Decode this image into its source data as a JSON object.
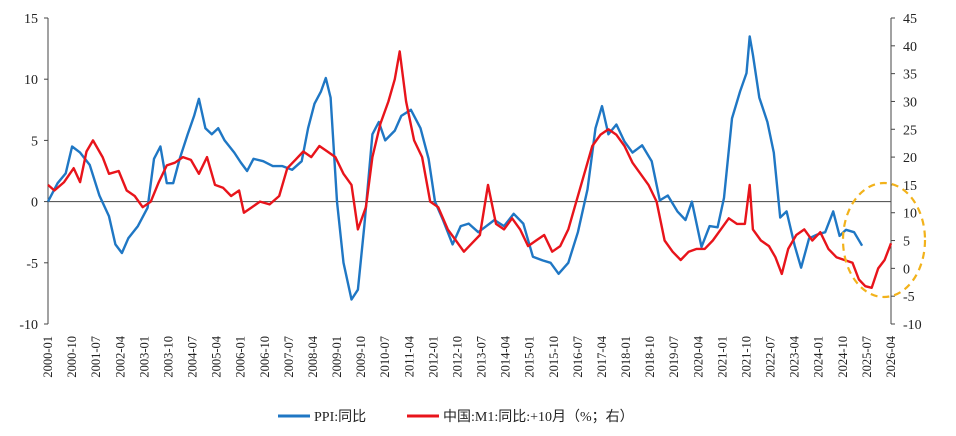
{
  "chart_data": {
    "type": "line",
    "title": "",
    "xlabel": "",
    "ylabel_left": "",
    "ylabel_right": "",
    "ylim_left": [
      -10,
      15
    ],
    "ylim_right": [
      -10,
      45
    ],
    "left_ticks": [
      "15",
      "10",
      "5",
      "0",
      "-5",
      "-10"
    ],
    "right_ticks": [
      "45",
      "40",
      "35",
      "30",
      "25",
      "20",
      "15",
      "10",
      "5",
      "0",
      "-5",
      "-10"
    ],
    "x_tick_labels": [
      "2000-01",
      "2000-10",
      "2001-07",
      "2002-04",
      "2003-01",
      "2003-10",
      "2004-07",
      "2005-04",
      "2006-01",
      "2006-10",
      "2007-07",
      "2008-04",
      "2009-01",
      "2009-10",
      "2010-07",
      "2011-04",
      "2012-01",
      "2012-10",
      "2013-07",
      "2014-04",
      "2015-01",
      "2015-10",
      "2016-07",
      "2017-04",
      "2018-01",
      "2018-10",
      "2019-07",
      "2020-04",
      "2021-01",
      "2021-10",
      "2022-07",
      "2023-04",
      "2024-01",
      "2024-10",
      "2025-07",
      "2026-04"
    ],
    "grid": false,
    "legend_position": "bottom",
    "series": [
      {
        "name": "PPI:同比",
        "axis": "left",
        "color": "#1f77c4",
        "points": [
          [
            2000.0,
            0.0
          ],
          [
            2000.3,
            1.5
          ],
          [
            2000.55,
            2.3
          ],
          [
            2000.75,
            4.5
          ],
          [
            2001.0,
            4.0
          ],
          [
            2001.3,
            3.0
          ],
          [
            2001.6,
            0.5
          ],
          [
            2001.9,
            -1.2
          ],
          [
            2002.1,
            -3.5
          ],
          [
            2002.3,
            -4.2
          ],
          [
            2002.5,
            -3.0
          ],
          [
            2002.8,
            -2.0
          ],
          [
            2003.1,
            -0.5
          ],
          [
            2003.3,
            3.5
          ],
          [
            2003.5,
            4.5
          ],
          [
            2003.7,
            1.5
          ],
          [
            2003.9,
            1.5
          ],
          [
            2004.1,
            3.5
          ],
          [
            2004.35,
            5.5
          ],
          [
            2004.55,
            7.0
          ],
          [
            2004.7,
            8.4
          ],
          [
            2004.9,
            6.0
          ],
          [
            2005.1,
            5.5
          ],
          [
            2005.3,
            6.0
          ],
          [
            2005.5,
            5.0
          ],
          [
            2005.8,
            4.0
          ],
          [
            2006.0,
            3.2
          ],
          [
            2006.2,
            2.5
          ],
          [
            2006.4,
            3.5
          ],
          [
            2006.7,
            3.3
          ],
          [
            2007.0,
            2.9
          ],
          [
            2007.3,
            2.9
          ],
          [
            2007.6,
            2.6
          ],
          [
            2007.9,
            3.3
          ],
          [
            2008.1,
            6.0
          ],
          [
            2008.3,
            8.0
          ],
          [
            2008.5,
            9.0
          ],
          [
            2008.65,
            10.1
          ],
          [
            2008.8,
            8.5
          ],
          [
            2009.0,
            0.0
          ],
          [
            2009.2,
            -5.0
          ],
          [
            2009.45,
            -8.0
          ],
          [
            2009.65,
            -7.2
          ],
          [
            2009.85,
            -2.0
          ],
          [
            2010.1,
            5.5
          ],
          [
            2010.3,
            6.5
          ],
          [
            2010.5,
            5.0
          ],
          [
            2010.8,
            5.8
          ],
          [
            2011.0,
            7.0
          ],
          [
            2011.3,
            7.5
          ],
          [
            2011.6,
            6.0
          ],
          [
            2011.85,
            3.5
          ],
          [
            2012.05,
            0.0
          ],
          [
            2012.3,
            -1.5
          ],
          [
            2012.6,
            -3.5
          ],
          [
            2012.85,
            -2.0
          ],
          [
            2013.1,
            -1.8
          ],
          [
            2013.4,
            -2.5
          ],
          [
            2013.65,
            -2.0
          ],
          [
            2013.9,
            -1.5
          ],
          [
            2014.2,
            -2.0
          ],
          [
            2014.5,
            -1.0
          ],
          [
            2014.8,
            -1.8
          ],
          [
            2015.1,
            -4.5
          ],
          [
            2015.4,
            -4.8
          ],
          [
            2015.65,
            -5.0
          ],
          [
            2015.9,
            -5.9
          ],
          [
            2016.2,
            -5.0
          ],
          [
            2016.5,
            -2.5
          ],
          [
            2016.8,
            1.0
          ],
          [
            2017.05,
            6.0
          ],
          [
            2017.25,
            7.8
          ],
          [
            2017.45,
            5.5
          ],
          [
            2017.7,
            6.3
          ],
          [
            2017.95,
            4.9
          ],
          [
            2018.2,
            4.0
          ],
          [
            2018.5,
            4.6
          ],
          [
            2018.8,
            3.3
          ],
          [
            2019.05,
            0.1
          ],
          [
            2019.3,
            0.5
          ],
          [
            2019.6,
            -0.8
          ],
          [
            2019.85,
            -1.5
          ],
          [
            2020.05,
            0.0
          ],
          [
            2020.35,
            -3.7
          ],
          [
            2020.6,
            -2.0
          ],
          [
            2020.85,
            -2.1
          ],
          [
            2021.05,
            0.3
          ],
          [
            2021.3,
            6.8
          ],
          [
            2021.55,
            9.0
          ],
          [
            2021.75,
            10.5
          ],
          [
            2021.85,
            13.5
          ],
          [
            2021.95,
            12.0
          ],
          [
            2022.15,
            8.5
          ],
          [
            2022.4,
            6.5
          ],
          [
            2022.6,
            4.0
          ],
          [
            2022.8,
            -1.3
          ],
          [
            2023.0,
            -0.8
          ],
          [
            2023.25,
            -3.6
          ],
          [
            2023.45,
            -5.4
          ],
          [
            2023.7,
            -3.0
          ],
          [
            2023.95,
            -2.7
          ],
          [
            2024.2,
            -2.5
          ],
          [
            2024.45,
            -0.8
          ],
          [
            2024.65,
            -2.8
          ],
          [
            2024.85,
            -2.3
          ],
          [
            2025.1,
            -2.5
          ],
          [
            2025.35,
            -3.6
          ]
        ]
      },
      {
        "name": "中国:M1:同比:+10月（%；右）",
        "axis": "right",
        "color": "#e8141b",
        "points": [
          [
            2000.0,
            15.0
          ],
          [
            2000.2,
            14.0
          ],
          [
            2000.5,
            15.5
          ],
          [
            2000.8,
            18.0
          ],
          [
            2001.0,
            15.5
          ],
          [
            2001.2,
            21.0
          ],
          [
            2001.4,
            23.0
          ],
          [
            2001.7,
            20.0
          ],
          [
            2001.9,
            17.0
          ],
          [
            2002.2,
            17.5
          ],
          [
            2002.45,
            14.0
          ],
          [
            2002.7,
            13.0
          ],
          [
            2002.95,
            11.0
          ],
          [
            2003.2,
            12.0
          ],
          [
            2003.45,
            15.5
          ],
          [
            2003.7,
            18.5
          ],
          [
            2003.95,
            19.0
          ],
          [
            2004.2,
            20.0
          ],
          [
            2004.45,
            19.5
          ],
          [
            2004.7,
            17.0
          ],
          [
            2004.95,
            20.0
          ],
          [
            2005.2,
            15.0
          ],
          [
            2005.45,
            14.5
          ],
          [
            2005.7,
            13.0
          ],
          [
            2005.95,
            14.0
          ],
          [
            2006.1,
            10.0
          ],
          [
            2006.35,
            11.0
          ],
          [
            2006.6,
            12.0
          ],
          [
            2006.9,
            11.5
          ],
          [
            2007.2,
            13.0
          ],
          [
            2007.45,
            18.0
          ],
          [
            2007.7,
            19.5
          ],
          [
            2007.95,
            21.0
          ],
          [
            2008.2,
            20.0
          ],
          [
            2008.45,
            22.0
          ],
          [
            2008.7,
            21.0
          ],
          [
            2008.95,
            20.0
          ],
          [
            2009.2,
            17.0
          ],
          [
            2009.45,
            15.0
          ],
          [
            2009.65,
            7.0
          ],
          [
            2009.9,
            11.0
          ],
          [
            2010.1,
            20.0
          ],
          [
            2010.35,
            26.0
          ],
          [
            2010.6,
            30.0
          ],
          [
            2010.8,
            34.0
          ],
          [
            2010.95,
            39.0
          ],
          [
            2011.15,
            30.0
          ],
          [
            2011.4,
            23.0
          ],
          [
            2011.65,
            20.0
          ],
          [
            2011.9,
            12.0
          ],
          [
            2012.15,
            11.0
          ],
          [
            2012.45,
            7.0
          ],
          [
            2012.7,
            5.0
          ],
          [
            2012.95,
            3.0
          ],
          [
            2013.2,
            4.5
          ],
          [
            2013.45,
            6.0
          ],
          [
            2013.7,
            15.0
          ],
          [
            2013.95,
            8.0
          ],
          [
            2014.2,
            7.0
          ],
          [
            2014.45,
            9.0
          ],
          [
            2014.7,
            7.0
          ],
          [
            2014.95,
            4.0
          ],
          [
            2015.2,
            5.0
          ],
          [
            2015.45,
            6.0
          ],
          [
            2015.7,
            3.0
          ],
          [
            2015.95,
            4.0
          ],
          [
            2016.2,
            7.0
          ],
          [
            2016.45,
            12.0
          ],
          [
            2016.7,
            17.0
          ],
          [
            2016.95,
            22.0
          ],
          [
            2017.2,
            24.0
          ],
          [
            2017.45,
            25.0
          ],
          [
            2017.7,
            24.0
          ],
          [
            2017.95,
            22.0
          ],
          [
            2018.2,
            19.0
          ],
          [
            2018.45,
            17.0
          ],
          [
            2018.7,
            15.0
          ],
          [
            2018.95,
            12.0
          ],
          [
            2019.2,
            5.0
          ],
          [
            2019.45,
            3.0
          ],
          [
            2019.7,
            1.5
          ],
          [
            2019.95,
            3.0
          ],
          [
            2020.2,
            3.5
          ],
          [
            2020.45,
            3.5
          ],
          [
            2020.7,
            5.0
          ],
          [
            2020.95,
            7.0
          ],
          [
            2021.2,
            9.0
          ],
          [
            2021.45,
            8.0
          ],
          [
            2021.7,
            8.0
          ],
          [
            2021.85,
            15.0
          ],
          [
            2021.95,
            7.0
          ],
          [
            2022.2,
            5.0
          ],
          [
            2022.45,
            4.0
          ],
          [
            2022.65,
            2.0
          ],
          [
            2022.85,
            -1.0
          ],
          [
            2023.05,
            3.5
          ],
          [
            2023.3,
            6.0
          ],
          [
            2023.55,
            7.0
          ],
          [
            2023.8,
            5.0
          ],
          [
            2024.05,
            6.5
          ],
          [
            2024.3,
            3.5
          ],
          [
            2024.55,
            2.0
          ],
          [
            2024.8,
            1.5
          ],
          [
            2025.05,
            1.0
          ],
          [
            2025.25,
            -2.0
          ],
          [
            2025.45,
            -3.2
          ],
          [
            2025.65,
            -3.5
          ],
          [
            2025.85,
            0.0
          ],
          [
            2026.05,
            1.5
          ],
          [
            2026.25,
            4.5
          ]
        ]
      }
    ],
    "legend": [
      "PPI:同比",
      "中国:M1:同比:+10月（%；右）"
    ]
  }
}
